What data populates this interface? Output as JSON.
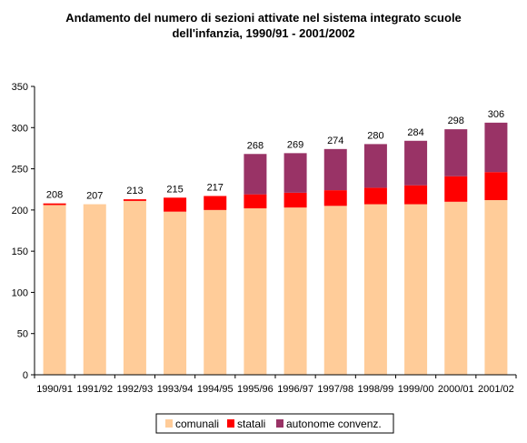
{
  "chart_data": {
    "type": "bar",
    "stacked": true,
    "title": "Andamento del numero di sezioni attivate nel sistema integrato scuole",
    "subtitle": "dell'infanzia, 1990/91 - 2001/2002",
    "xlabel": "",
    "ylabel": "",
    "ylim": [
      0,
      350
    ],
    "yticks": [
      0,
      50,
      100,
      150,
      200,
      250,
      300,
      350
    ],
    "grid": false,
    "legend_position": "bottom",
    "categories": [
      "1990/91",
      "1991/92",
      "1992/93",
      "1993/94",
      "1994/95",
      "1995/96",
      "1996/97",
      "1997/98",
      "1998/99",
      "1999/00",
      "2000/01",
      "2001/02"
    ],
    "series": [
      {
        "name": "comunali",
        "color": "#FFCC99",
        "values": [
          206,
          207,
          211,
          198,
          200,
          202,
          203,
          205,
          207,
          207,
          210,
          212
        ]
      },
      {
        "name": "statali",
        "color": "#FF0000",
        "values": [
          2,
          0,
          2,
          17,
          17,
          17,
          18,
          19,
          20,
          23,
          31,
          34
        ]
      },
      {
        "name": "autonome convenz.",
        "color": "#993366",
        "values": [
          0,
          0,
          0,
          0,
          0,
          49,
          48,
          50,
          53,
          54,
          57,
          60
        ]
      }
    ],
    "totals": [
      "208",
      "207",
      "213",
      "215",
      "217",
      "268",
      "269",
      "274",
      "280",
      "284",
      "298",
      "306"
    ]
  }
}
